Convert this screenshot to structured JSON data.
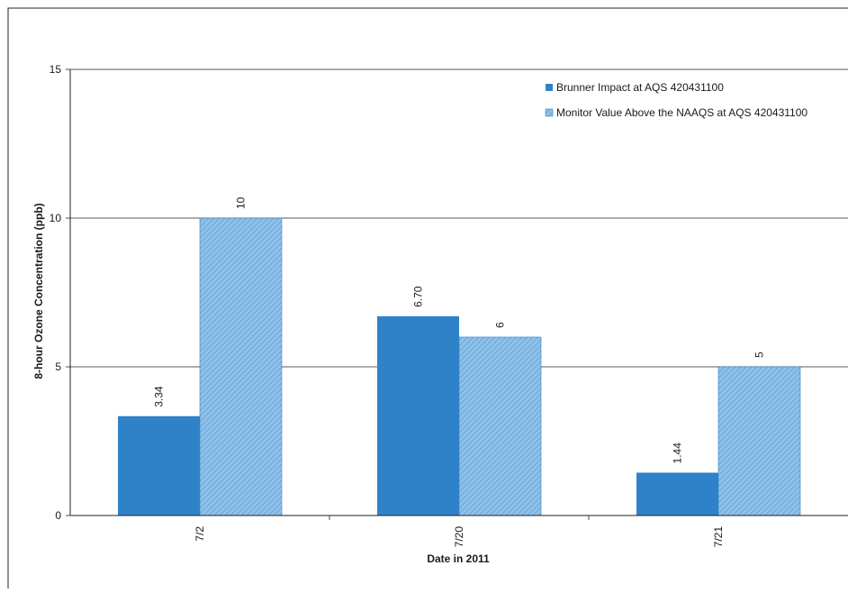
{
  "chart_data": {
    "type": "bar",
    "categories": [
      "7/2",
      "7/20",
      "7/21"
    ],
    "series": [
      {
        "name": "Brunner Impact at AQS 420431100",
        "values": [
          3.34,
          6.7,
          1.44
        ],
        "labels": [
          "3.34",
          "6.70",
          "1.44"
        ],
        "color": "#2f82c8"
      },
      {
        "name": "Monitor Value Above the NAAQS at AQS 420431100",
        "values": [
          10,
          6,
          5
        ],
        "labels": [
          "10",
          "6",
          "5"
        ],
        "color": "#8fc2ea"
      }
    ],
    "title": "",
    "xlabel": "Date in 2011",
    "ylabel": "8-hour Ozone Concentration (ppb)",
    "ylim": [
      0,
      15
    ],
    "yticks": [
      "0",
      "5",
      "10",
      "15"
    ],
    "grid": true,
    "legend_position": "top-right"
  }
}
